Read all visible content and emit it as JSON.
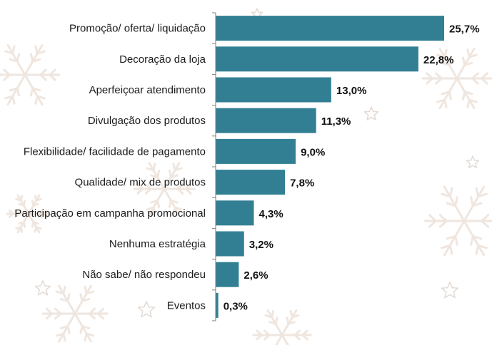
{
  "colors": {
    "bar": "#327F94",
    "axis": "#7f7f7f",
    "decor": "#efe6df"
  },
  "background": {
    "decoration": "snowflakes-and-stars-pattern"
  },
  "chart_data": {
    "type": "bar",
    "orientation": "horizontal",
    "title": "",
    "xlabel": "",
    "ylabel": "",
    "grid": false,
    "legend": "none",
    "xlim": [
      0,
      27
    ],
    "categories": [
      "Promoção/ oferta/ liquidação",
      "Decoração da loja",
      "Aperfeiçoar atendimento",
      "Divulgação dos produtos",
      "Flexibilidade/ facilidade de pagamento",
      "Qualidade/ mix de produtos",
      "Participação em campanha promocional",
      "Nenhuma estratégia",
      "Não sabe/ não respondeu",
      "Eventos"
    ],
    "values": [
      25.7,
      22.8,
      13.0,
      11.3,
      9.0,
      7.8,
      4.3,
      3.2,
      2.6,
      0.3
    ],
    "value_labels": [
      "25,7%",
      "22,8%",
      "13,0%",
      "11,3%",
      "9,0%",
      "7,8%",
      "4,3%",
      "3,2%",
      "2,6%",
      "0,3%"
    ]
  }
}
